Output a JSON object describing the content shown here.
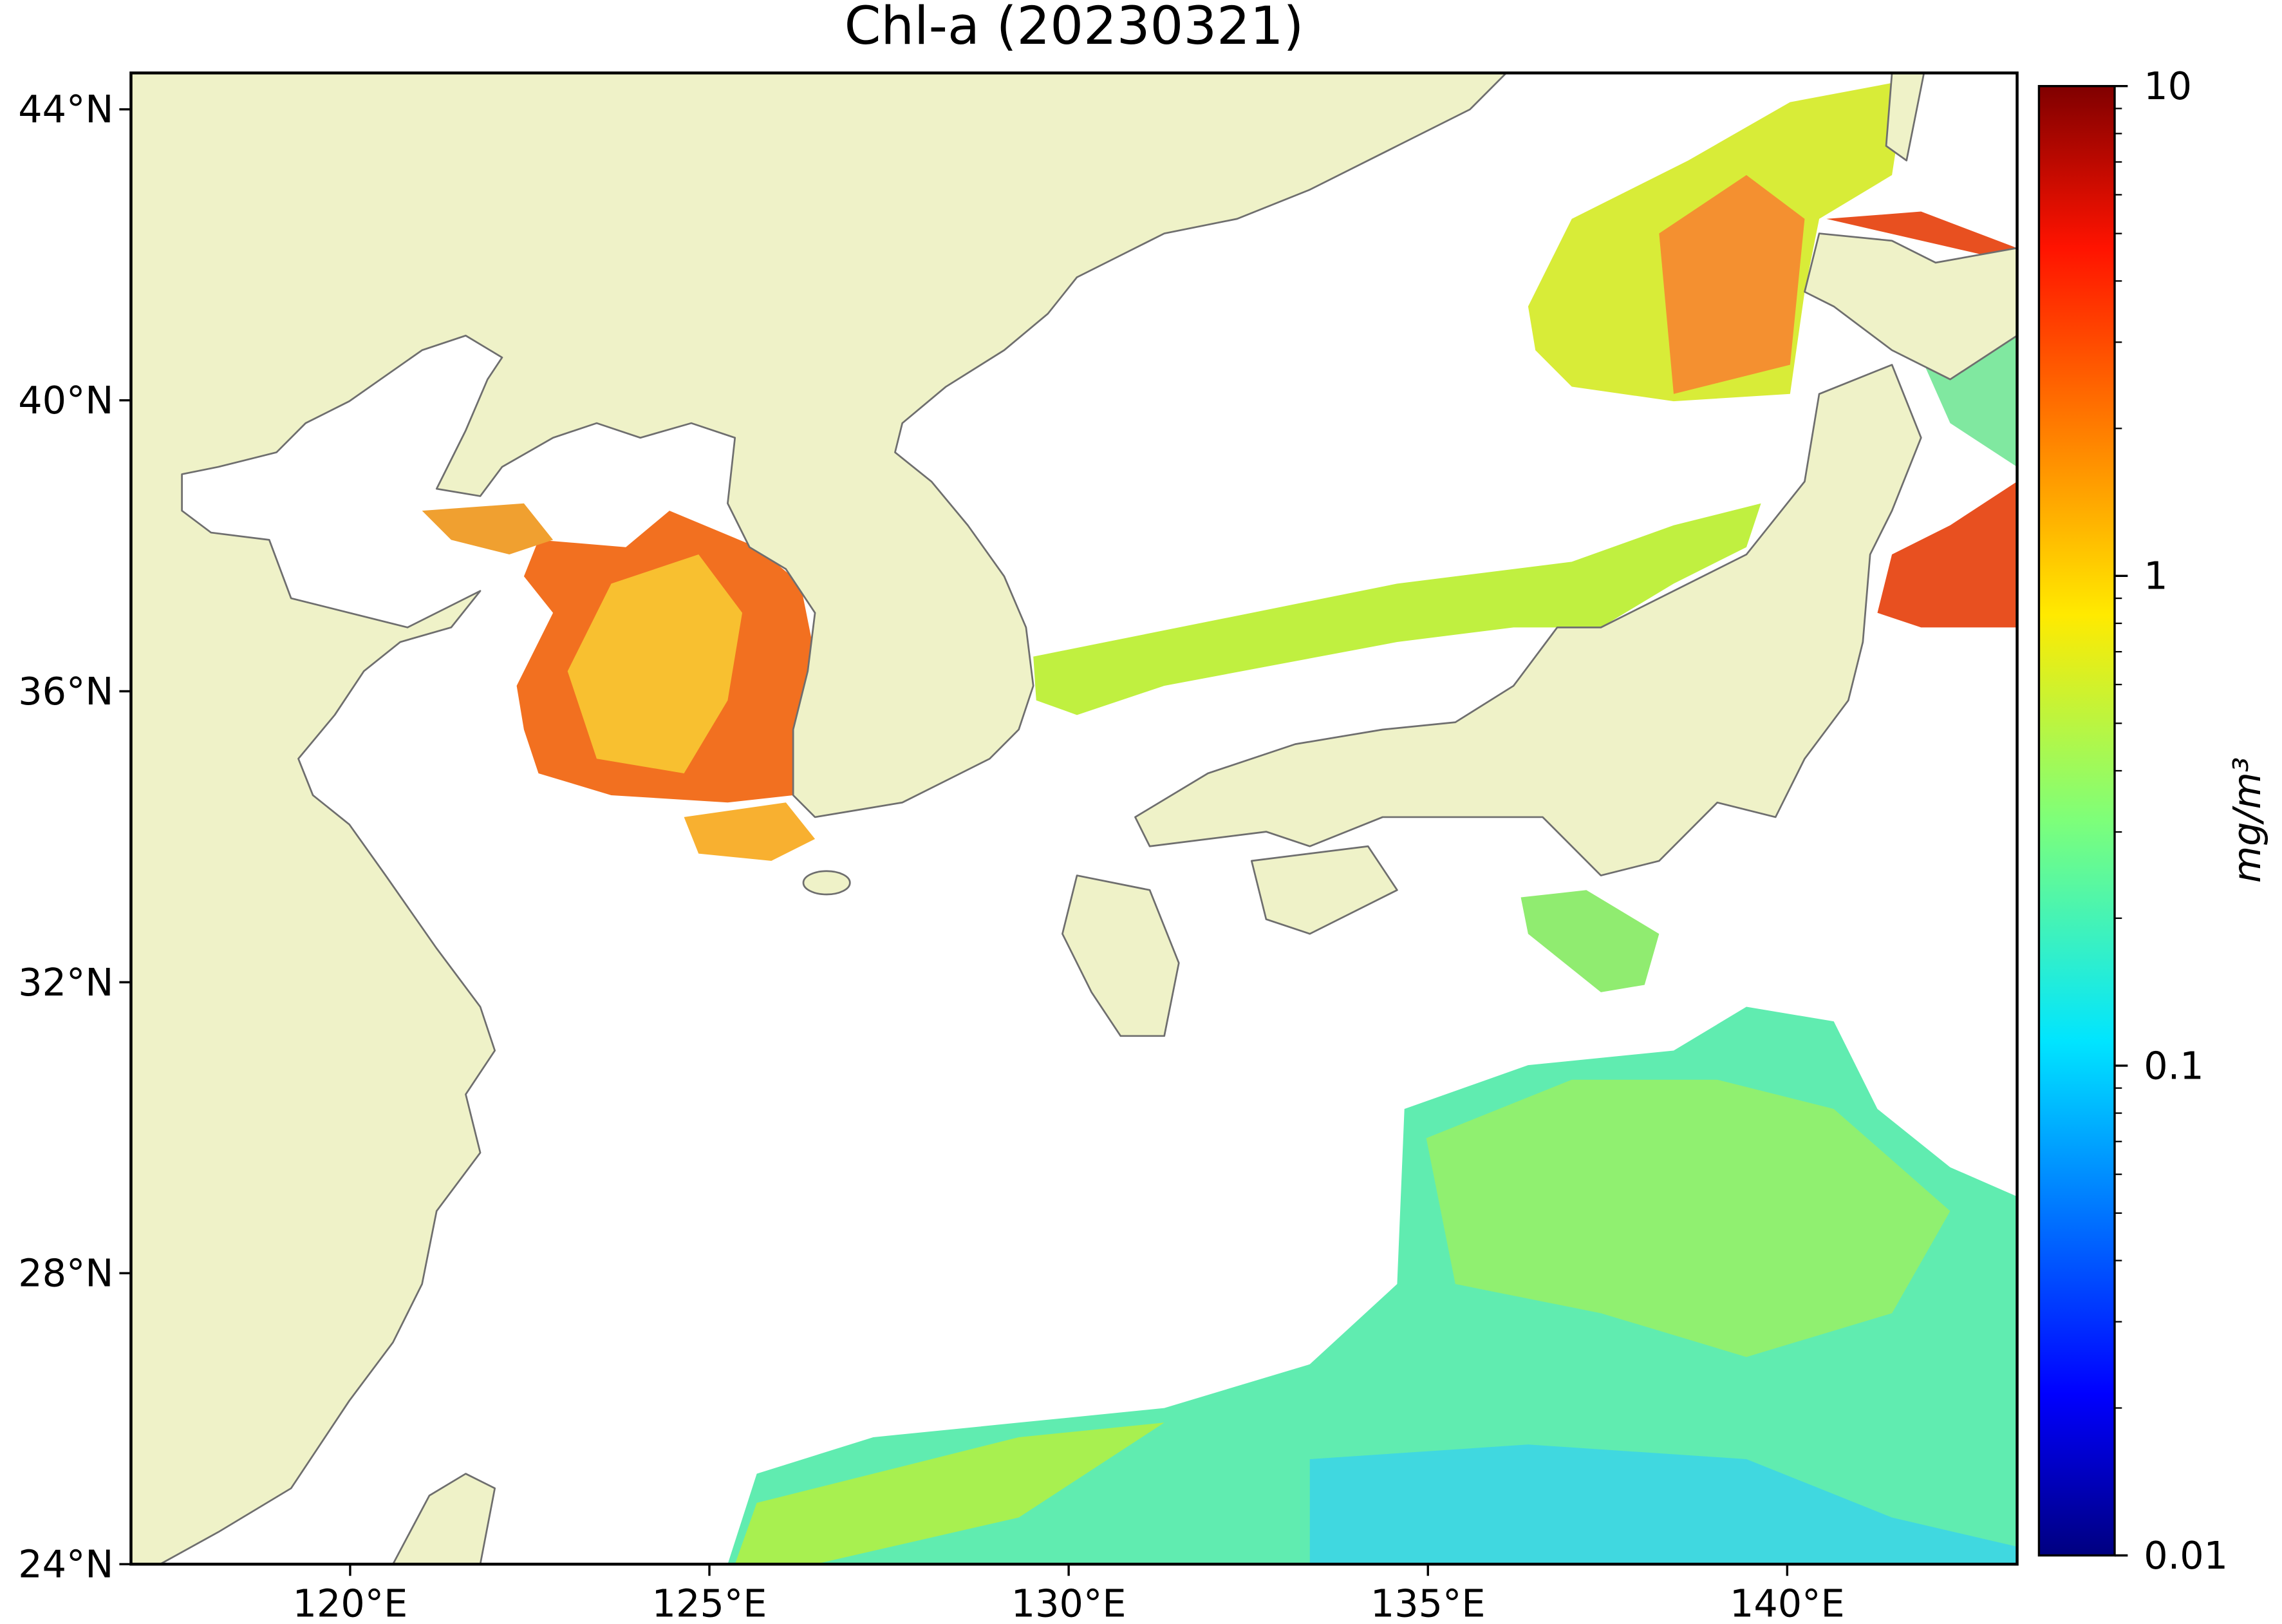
{
  "title": "Chl-a (20230321)",
  "map": {
    "xlim": [
      116.95,
      143.2
    ],
    "ylim": [
      24,
      44.5
    ],
    "xticks": [
      {
        "value": 120,
        "label": "120°E"
      },
      {
        "value": 125,
        "label": "125°E"
      },
      {
        "value": 130,
        "label": "130°E"
      },
      {
        "value": 135,
        "label": "135°E"
      },
      {
        "value": 140,
        "label": "140°E"
      }
    ],
    "yticks": [
      {
        "value": 24,
        "label": "24°N"
      },
      {
        "value": 28,
        "label": "28°N"
      },
      {
        "value": 32,
        "label": "32°N"
      },
      {
        "value": 36,
        "label": "36°N"
      },
      {
        "value": 40,
        "label": "40°N"
      },
      {
        "value": 44,
        "label": "44°N"
      }
    ]
  },
  "colorbar": {
    "label": "mg/m³",
    "colormap": "jet",
    "scale": "log",
    "lim": [
      0.01,
      10
    ],
    "ticks": [
      0.01,
      0.1,
      1,
      10
    ]
  }
}
